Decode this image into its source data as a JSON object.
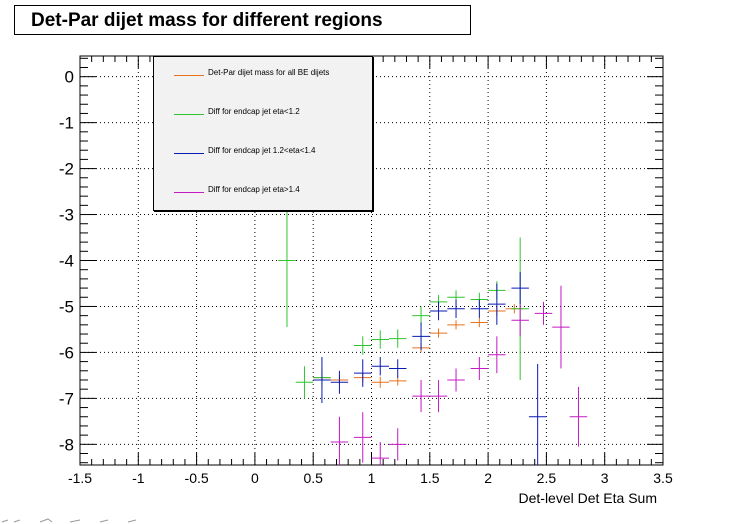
{
  "title": "Det-Par dijet mass for different regions",
  "chart_data": {
    "type": "scatter",
    "title": "Det-Par dijet mass for different regions",
    "xlabel": "Det-level Det Eta Sum",
    "ylabel": "",
    "xlim": [
      -1.5,
      3.5
    ],
    "ylim": [
      -8.45,
      0.45
    ],
    "grid": true,
    "legend_position": "top-left",
    "x_ticks": [
      "-1.5",
      "-1",
      "-0.5",
      "0",
      "0.5",
      "1",
      "1.5",
      "2",
      "2.5",
      "3",
      "3.5"
    ],
    "y_ticks": [
      "0",
      "-1",
      "-2",
      "-3",
      "-4",
      "-5",
      "-6",
      "-7",
      "-8"
    ],
    "series": [
      {
        "name": "Det-Par dijet mass for all BE dijets",
        "color": "#e8711d",
        "xerr": 0.075,
        "points": [
          {
            "x": 0.575,
            "y": -6.55,
            "yerr": 0.08
          },
          {
            "x": 0.725,
            "y": -6.6,
            "yerr": 0.1
          },
          {
            "x": 0.925,
            "y": -6.55,
            "yerr": 0.1
          },
          {
            "x": 1.075,
            "y": -6.65,
            "yerr": 0.12
          },
          {
            "x": 1.225,
            "y": -6.62,
            "yerr": 0.1
          },
          {
            "x": 1.425,
            "y": -5.9,
            "yerr": 0.1
          },
          {
            "x": 1.575,
            "y": -5.58,
            "yerr": 0.1
          },
          {
            "x": 1.725,
            "y": -5.4,
            "yerr": 0.1
          },
          {
            "x": 1.925,
            "y": -5.35,
            "yerr": 0.1
          },
          {
            "x": 2.075,
            "y": -5.1,
            "yerr": 0.1
          },
          {
            "x": 2.225,
            "y": -5.05,
            "yerr": 0.1
          }
        ]
      },
      {
        "name": "Diff for endcap jet eta<1.2",
        "color": "#2fc42f",
        "xerr": 0.075,
        "points": [
          {
            "x": 0.275,
            "y": -4.0,
            "yerr": 1.45
          },
          {
            "x": 0.425,
            "y": -6.65,
            "yerr": 0.35
          },
          {
            "x": 0.575,
            "y": -6.55,
            "yerr": 0.2
          },
          {
            "x": 0.925,
            "y": -5.85,
            "yerr": 0.2
          },
          {
            "x": 1.075,
            "y": -5.72,
            "yerr": 0.2
          },
          {
            "x": 1.225,
            "y": -5.7,
            "yerr": 0.2
          },
          {
            "x": 1.425,
            "y": -5.2,
            "yerr": 0.2
          },
          {
            "x": 1.575,
            "y": -4.9,
            "yerr": 0.15
          },
          {
            "x": 1.725,
            "y": -4.8,
            "yerr": 0.15
          },
          {
            "x": 1.925,
            "y": -4.85,
            "yerr": 0.15
          },
          {
            "x": 2.075,
            "y": -4.65,
            "yerr": 0.2
          },
          {
            "x": 2.275,
            "y": -5.05,
            "yerr": 1.55
          }
        ]
      },
      {
        "name": "Diff for endcap jet 1.2<eta<1.4",
        "color": "#0a1ab4",
        "xerr": 0.075,
        "points": [
          {
            "x": 0.575,
            "y": -6.6,
            "yerr": 0.5
          },
          {
            "x": 0.725,
            "y": -6.65,
            "yerr": 0.25
          },
          {
            "x": 0.925,
            "y": -6.45,
            "yerr": 0.3
          },
          {
            "x": 1.075,
            "y": -6.3,
            "yerr": 0.2
          },
          {
            "x": 1.225,
            "y": -6.35,
            "yerr": 0.2
          },
          {
            "x": 1.425,
            "y": -5.65,
            "yerr": 0.3
          },
          {
            "x": 1.575,
            "y": -5.1,
            "yerr": 0.2
          },
          {
            "x": 1.725,
            "y": -5.05,
            "yerr": 0.2
          },
          {
            "x": 1.925,
            "y": -5.05,
            "yerr": 0.2
          },
          {
            "x": 2.075,
            "y": -4.95,
            "yerr": 0.45
          },
          {
            "x": 2.275,
            "y": -4.6,
            "yerr": 0.35
          },
          {
            "x": 2.425,
            "y": -7.4,
            "yerr": 1.15
          }
        ]
      },
      {
        "name": "Diff for endcap jet eta>1.4",
        "color": "#c419c4",
        "xerr": 0.075,
        "points": [
          {
            "x": 0.725,
            "y": -7.95,
            "yerr": 0.55
          },
          {
            "x": 0.925,
            "y": -7.85,
            "yerr": 0.55
          },
          {
            "x": 1.075,
            "y": -8.3,
            "yerr": 0.35
          },
          {
            "x": 1.225,
            "y": -8.0,
            "yerr": 0.35
          },
          {
            "x": 1.425,
            "y": -6.95,
            "yerr": 0.35
          },
          {
            "x": 1.575,
            "y": -6.95,
            "yerr": 0.35
          },
          {
            "x": 1.725,
            "y": -6.6,
            "yerr": 0.25
          },
          {
            "x": 1.925,
            "y": -6.35,
            "yerr": 0.25
          },
          {
            "x": 2.075,
            "y": -6.05,
            "yerr": 0.4
          },
          {
            "x": 2.275,
            "y": -5.3,
            "yerr": 0.35
          },
          {
            "x": 2.475,
            "y": -5.15,
            "yerr": 0.25
          },
          {
            "x": 2.625,
            "y": -5.45,
            "yerr": 0.9
          },
          {
            "x": 2.775,
            "y": -7.4,
            "yerr": 0.65
          }
        ]
      }
    ]
  }
}
